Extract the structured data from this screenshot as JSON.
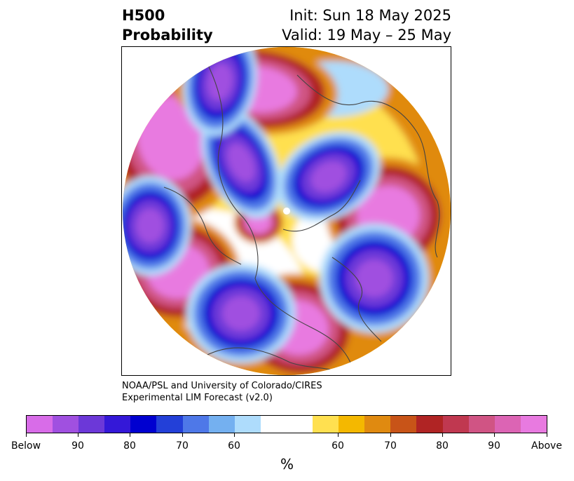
{
  "header": {
    "left_line1": "H500",
    "left_line2": "Probability",
    "right_line1": "Init: Sun 18 May 2025",
    "right_line2": "Valid: 19 May – 25 May"
  },
  "credit": {
    "line1": "NOAA/PSL and University of Colorado/CIRES",
    "line2": "Experimental LIM Forecast (v2.0)"
  },
  "colorbar": {
    "colors": [
      "#d86ce8",
      "#a050e0",
      "#6c38d8",
      "#3418d8",
      "#0000d0",
      "#2340d8",
      "#4e78e8",
      "#74b0f0",
      "#aedcfc",
      "#ffffff",
      "#ffe050",
      "#f4b800",
      "#e08a10",
      "#c85418",
      "#b02424",
      "#c03850",
      "#d05484",
      "#dc64b4",
      "#e87ae0"
    ],
    "tick_labels": [
      "Below",
      "90",
      "80",
      "70",
      "60",
      "60",
      "70",
      "80",
      "90",
      "Above"
    ],
    "unit_label": "%"
  },
  "map": {
    "projection": "polar-stereographic",
    "palette": {
      "above_strong": "#e87ae0",
      "above_mid": "#d05484",
      "above_low": "#b02424",
      "near_above": "#e08a10",
      "light_above": "#ffe050",
      "neutral": "#ffffff",
      "light_below": "#aedcfc",
      "near_below": "#4e78e8",
      "below_low": "#0000d0",
      "below_mid": "#6c38d8",
      "below_strong": "#a050e0",
      "coast": "#444444"
    }
  }
}
